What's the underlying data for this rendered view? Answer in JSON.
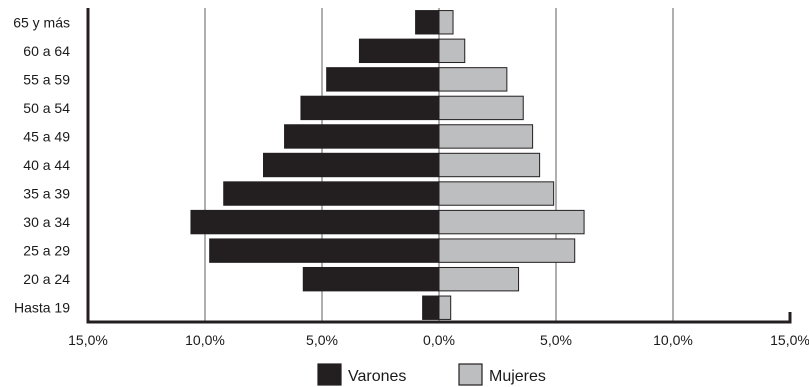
{
  "chart_data": {
    "type": "bar",
    "orientation": "horizontal",
    "layout": "population-pyramid",
    "categories": [
      "Hasta 19",
      "20 a 24",
      "25 a 29",
      "30 a 34",
      "35 a 39",
      "40 a 44",
      "45 a 49",
      "50 a 54",
      "55 a 59",
      "60 a 64",
      "65 y más"
    ],
    "series": [
      {
        "name": "Varones",
        "side": "left",
        "color": "#231f20",
        "values": [
          0.7,
          5.8,
          9.8,
          10.6,
          9.2,
          7.5,
          6.6,
          5.9,
          4.8,
          3.4,
          1.0
        ]
      },
      {
        "name": "Mujeres",
        "side": "right",
        "color": "#bcbec0",
        "values": [
          0.5,
          3.4,
          5.8,
          6.2,
          4.9,
          4.3,
          4.0,
          3.6,
          2.9,
          1.1,
          0.6
        ]
      }
    ],
    "xlim": [
      -15,
      15
    ],
    "x_ticks": [
      -15,
      -10,
      -5,
      0,
      5,
      10,
      15
    ],
    "x_tick_labels": [
      "15,0%",
      "10,0%",
      "5,0%",
      "0,0%",
      "5,0%",
      "10,0%",
      "15,0%"
    ],
    "grid": true,
    "legend_position": "bottom-center",
    "title": "",
    "xlabel": "",
    "ylabel": ""
  }
}
